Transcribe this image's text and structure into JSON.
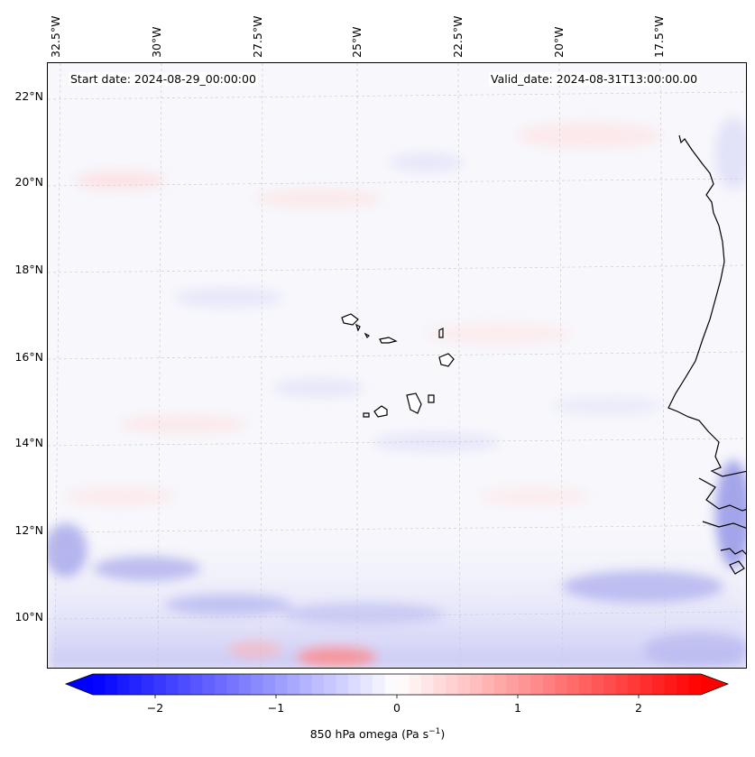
{
  "map": {
    "start_date": "Start date: 2024-08-29_00:00:00",
    "valid_date": "Valid_date: 2024-08-31T13:00:00.00",
    "lon_labels": [
      "32.5°W",
      "30°W",
      "27.5°W",
      "25°W",
      "22.5°W",
      "20°W",
      "17.5°W"
    ],
    "lat_labels": [
      "22°N",
      "20°N",
      "18°N",
      "16°N",
      "14°N",
      "12°N",
      "10°N"
    ],
    "field": "850 hPa omega",
    "regions": [
      "Cape Verde Islands",
      "West African coast"
    ]
  },
  "colorbar": {
    "ticks": [
      "−2",
      "−1",
      "0",
      "1",
      "2"
    ],
    "label_main": "850 hPa omega (Pa s",
    "label_exp": "−1",
    "label_close": ")",
    "range": [
      -2.5,
      2.5
    ],
    "cmap": "bwr",
    "colors": {
      "low": "#0000ff",
      "mid": "#ffffff",
      "high": "#ff0000"
    }
  }
}
